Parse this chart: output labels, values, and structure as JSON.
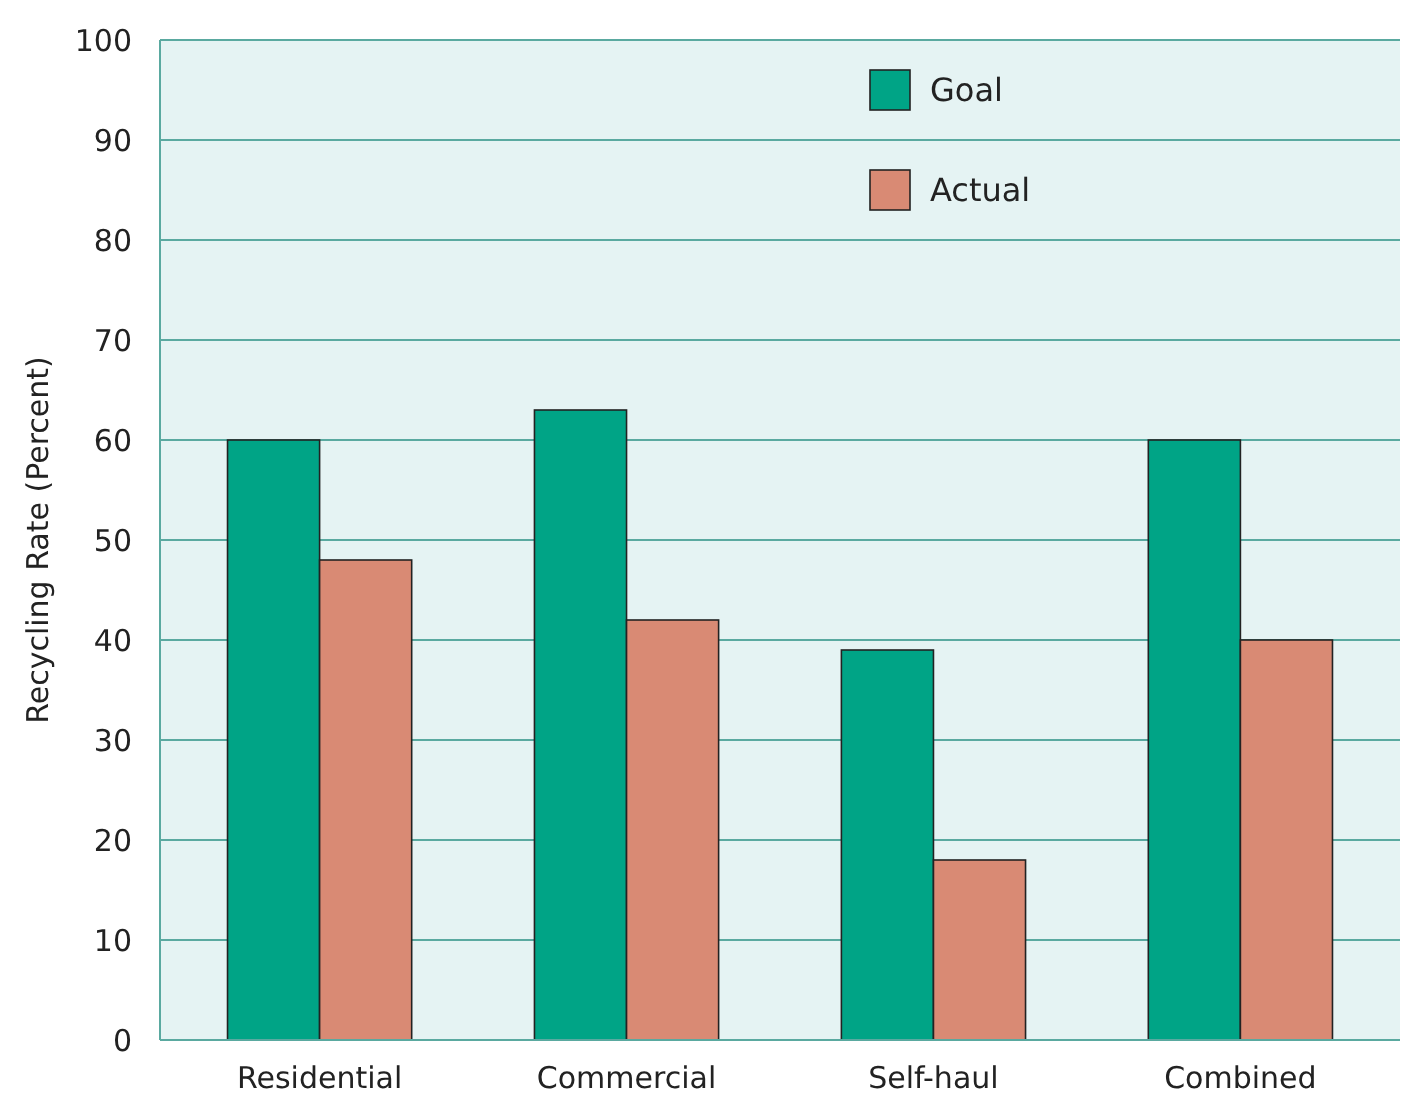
{
  "chart_data": {
    "type": "bar",
    "ylabel": "Recycling Rate (Percent)",
    "categories": [
      "Residential",
      "Commercial",
      "Self-haul",
      "Combined"
    ],
    "series": [
      {
        "name": "Goal",
        "color": "#00a486",
        "values": [
          60,
          63,
          39,
          60
        ]
      },
      {
        "name": "Actual",
        "color": "#d98a74",
        "values": [
          48,
          42,
          18,
          40
        ]
      }
    ],
    "ylim": [
      0,
      100
    ],
    "yticks": [
      0,
      10,
      20,
      30,
      40,
      50,
      60,
      70,
      80,
      90,
      100
    ],
    "grid": "y",
    "legend": "top right"
  }
}
